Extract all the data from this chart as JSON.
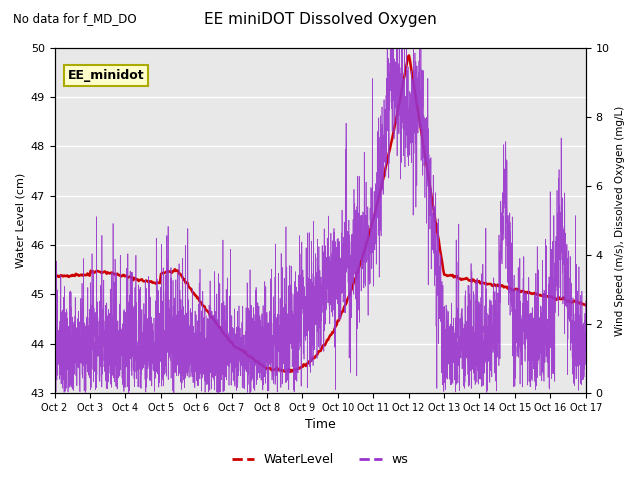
{
  "title": "EE miniDOT Dissolved Oxygen",
  "subtitle": "No data for f_MD_DO",
  "ylabel_left": "Water Level (cm)",
  "ylabel_right": "Wind Speed (m/s), Dissolved Oxygen (mg/L)",
  "xlabel": "Time",
  "ylim_left": [
    43.0,
    50.0
  ],
  "ylim_right": [
    0.0,
    10.0
  ],
  "bg_color": "#e8e8e8",
  "wl_color": "#cc0000",
  "ws_color": "#9933cc",
  "legend_label_box": "EE_minidot",
  "legend_items": [
    "WaterLevel",
    "ws"
  ],
  "xtick_labels": [
    "Oct 2",
    "Oct 3",
    "Oct 4",
    "Oct 5",
    "Oct 6",
    "Oct 7",
    "Oct 8",
    "Oct 9",
    "Oct 10",
    "Oct 11",
    "Oct 12",
    "Oct 13",
    "Oct 14",
    "Oct 15",
    "Oct 16",
    "Oct 17"
  ],
  "n_points_wl": 500,
  "n_points_ws": 5000
}
